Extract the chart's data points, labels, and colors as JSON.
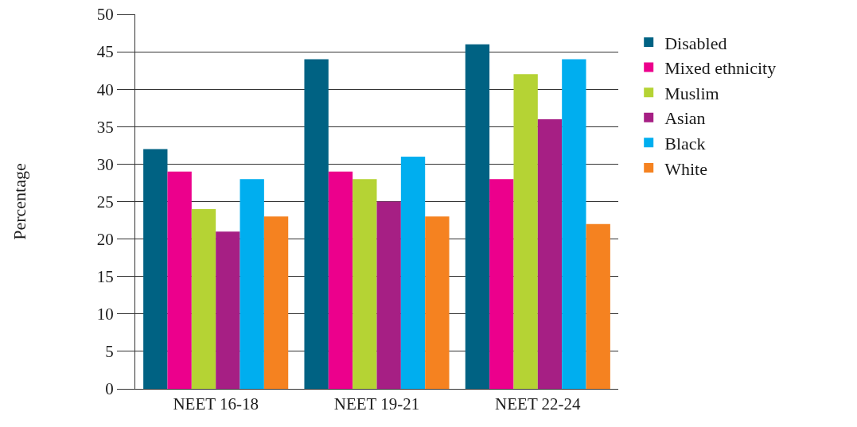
{
  "chart_data": {
    "type": "bar",
    "ylabel": "Percentage",
    "categories": [
      "NEET 16-18",
      "NEET 19-21",
      "NEET 22-24"
    ],
    "series": [
      {
        "name": "Disabled",
        "color": "#006283",
        "values": [
          32,
          44,
          46
        ]
      },
      {
        "name": "Mixed ethnicity",
        "color": "#ec008c",
        "values": [
          29,
          29,
          28
        ]
      },
      {
        "name": "Muslim",
        "color": "#b5d334",
        "values": [
          24,
          28,
          42
        ]
      },
      {
        "name": "Asian",
        "color": "#a61f84",
        "values": [
          21,
          25,
          36
        ]
      },
      {
        "name": "Black",
        "color": "#00aeef",
        "values": [
          28,
          31,
          44
        ]
      },
      {
        "name": "White",
        "color": "#f58220",
        "values": [
          23,
          23,
          22
        ]
      }
    ],
    "ylim": [
      0,
      50
    ],
    "yticks": [
      0,
      5,
      10,
      15,
      20,
      25,
      30,
      35,
      40,
      45,
      50
    ],
    "grid": "y",
    "legend": "right"
  }
}
